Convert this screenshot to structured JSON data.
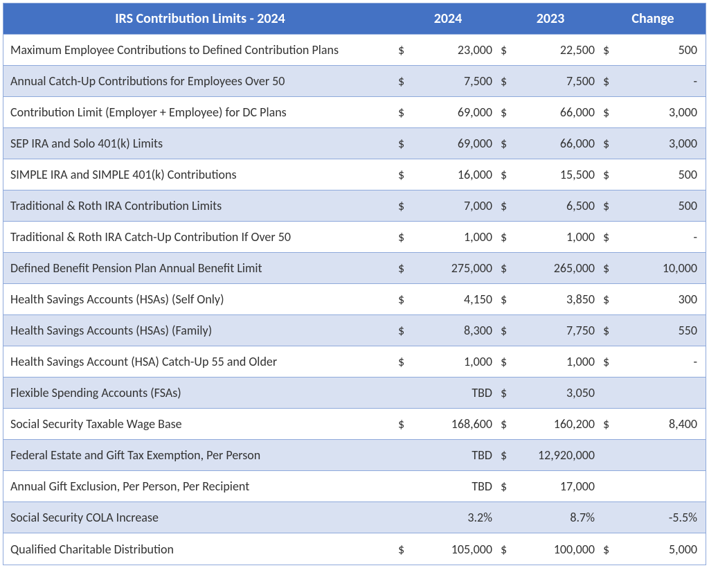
{
  "table": {
    "header": {
      "title": "IRS Contribution Limits - 2024",
      "col_2024": "2024",
      "col_2023": "2023",
      "col_change": "Change"
    },
    "header_bg_color": "#4472c4",
    "header_text_color": "#ffffff",
    "row_odd_bg": "#d9e1f2",
    "row_even_bg": "#ffffff",
    "border_color": "#8ea9db",
    "text_color": "#333333",
    "font_family": "Calibri",
    "label_fontsize": 18,
    "header_fontsize": 20,
    "rows": [
      {
        "label": "Maximum Employee Contributions to Defined Contribution Plans",
        "c2024_sym": "$",
        "c2024": "23,000",
        "c2023_sym": "$",
        "c2023": "22,500",
        "chg_sym": "$",
        "chg": "500"
      },
      {
        "label": "Annual Catch-Up Contributions for Employees Over 50",
        "c2024_sym": "$",
        "c2024": "7,500",
        "c2023_sym": "$",
        "c2023": "7,500",
        "chg_sym": "$",
        "chg": "-"
      },
      {
        "label": "Contribution Limit (Employer + Employee) for DC Plans",
        "c2024_sym": "$",
        "c2024": "69,000",
        "c2023_sym": "$",
        "c2023": "66,000",
        "chg_sym": "$",
        "chg": "3,000"
      },
      {
        "label": "SEP IRA and Solo 401(k) Limits",
        "c2024_sym": "$",
        "c2024": "69,000",
        "c2023_sym": "$",
        "c2023": "66,000",
        "chg_sym": "$",
        "chg": "3,000"
      },
      {
        "label": "SIMPLE IRA and SIMPLE 401(k) Contributions",
        "c2024_sym": "$",
        "c2024": "16,000",
        "c2023_sym": "$",
        "c2023": "15,500",
        "chg_sym": "$",
        "chg": "500"
      },
      {
        "label": "Traditional & Roth IRA Contribution Limits",
        "c2024_sym": "$",
        "c2024": "7,000",
        "c2023_sym": "$",
        "c2023": "6,500",
        "chg_sym": "$",
        "chg": "500"
      },
      {
        "label": "Traditional & Roth IRA Catch-Up Contribution If Over 50",
        "c2024_sym": "$",
        "c2024": "1,000",
        "c2023_sym": "$",
        "c2023": "1,000",
        "chg_sym": "$",
        "chg": "-"
      },
      {
        "label": "Defined Benefit Pension Plan Annual Benefit Limit",
        "c2024_sym": "$",
        "c2024": "275,000",
        "c2023_sym": "$",
        "c2023": "265,000",
        "chg_sym": "$",
        "chg": "10,000"
      },
      {
        "label": "Health Savings Accounts (HSAs) (Self Only)",
        "c2024_sym": "$",
        "c2024": "4,150",
        "c2023_sym": "$",
        "c2023": "3,850",
        "chg_sym": "$",
        "chg": "300"
      },
      {
        "label": "Health Savings Accounts (HSAs) (Family)",
        "c2024_sym": "$",
        "c2024": "8,300",
        "c2023_sym": "$",
        "c2023": "7,750",
        "chg_sym": "$",
        "chg": "550"
      },
      {
        "label": "Health Savings Account (HSA) Catch-Up 55 and Older",
        "c2024_sym": "$",
        "c2024": "1,000",
        "c2023_sym": "$",
        "c2023": "1,000",
        "chg_sym": "$",
        "chg": "-"
      },
      {
        "label": "Flexible Spending Accounts (FSAs)",
        "c2024_sym": "",
        "c2024": "TBD",
        "c2023_sym": "$",
        "c2023": "3,050",
        "chg_sym": "",
        "chg": ""
      },
      {
        "label": "Social Security Taxable Wage Base",
        "c2024_sym": "$",
        "c2024": "168,600",
        "c2023_sym": "$",
        "c2023": "160,200",
        "chg_sym": "$",
        "chg": "8,400"
      },
      {
        "label": "Federal Estate and Gift Tax Exemption, Per Person",
        "c2024_sym": "",
        "c2024": "TBD",
        "c2023_sym": "$",
        "c2023": "12,920,000",
        "chg_sym": "",
        "chg": ""
      },
      {
        "label": "Annual Gift Exclusion, Per Person, Per Recipient",
        "c2024_sym": "",
        "c2024": "TBD",
        "c2023_sym": "$",
        "c2023": "17,000",
        "chg_sym": "",
        "chg": ""
      },
      {
        "label": "Social Security COLA Increase",
        "c2024_sym": "",
        "c2024": "3.2%",
        "c2023_sym": "",
        "c2023": "8.7%",
        "chg_sym": "",
        "chg": "-5.5%"
      },
      {
        "label": "Qualified Charitable Distribution",
        "c2024_sym": "$",
        "c2024": "105,000",
        "c2023_sym": "$",
        "c2023": "100,000",
        "chg_sym": "$",
        "chg": "5,000"
      }
    ]
  }
}
